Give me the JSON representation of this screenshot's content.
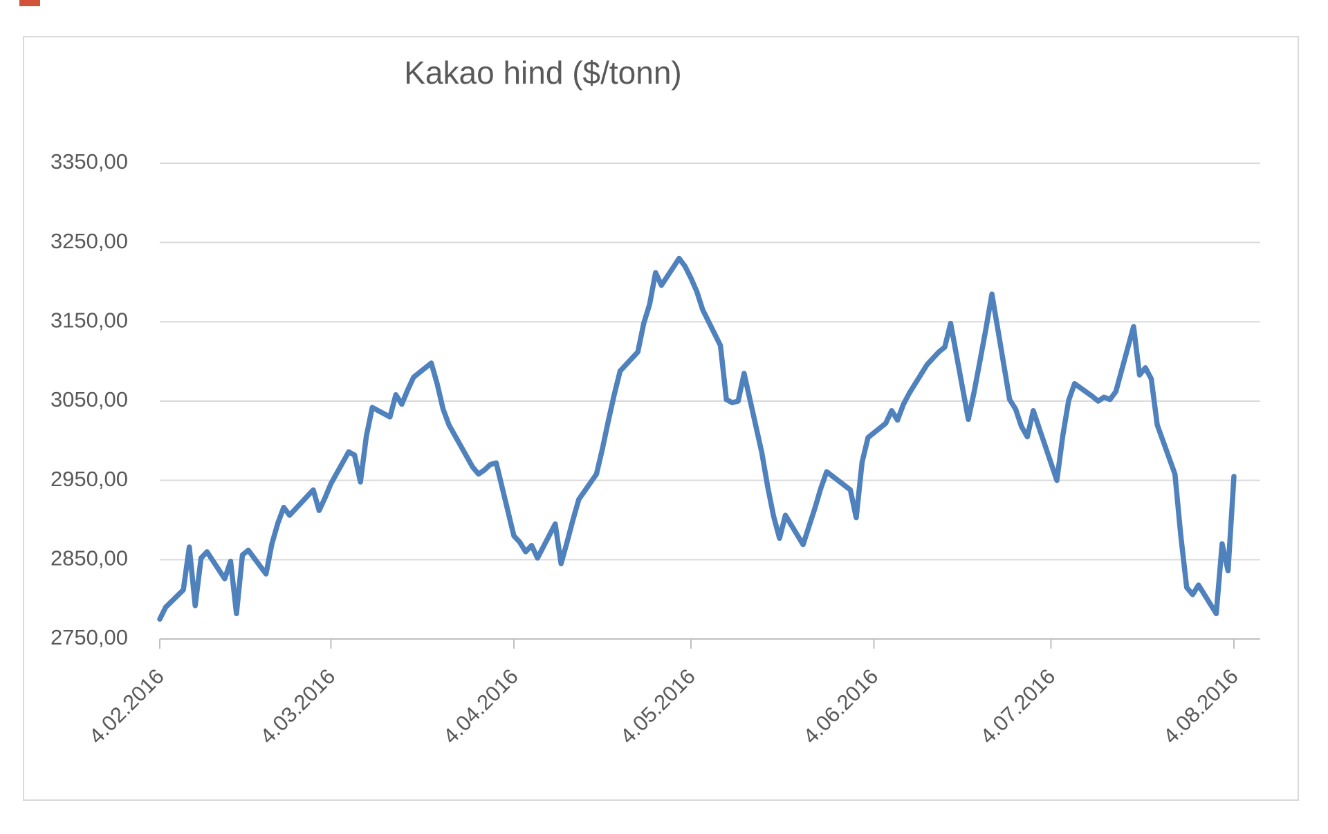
{
  "page": {
    "background_color": "#ffffff"
  },
  "artifact": {
    "color": "#cc4125"
  },
  "chart_data": {
    "type": "line",
    "title": "Kakao hind ($/tonn)",
    "title_color": "#595959",
    "line_color": "#4f81bd",
    "gridline_color": "#d9d9d9",
    "axis_color": "#bfbfbf",
    "label_color": "#595959",
    "frame_border_color": "#d9d9d9",
    "grid": "horizontal-only",
    "legend": "none",
    "ylim": [
      2750,
      3350
    ],
    "ytick_step": 100,
    "yticks": [
      {
        "value": 2750,
        "label": "2750,00"
      },
      {
        "value": 2850,
        "label": "2850,00"
      },
      {
        "value": 2950,
        "label": "2950,00"
      },
      {
        "value": 3050,
        "label": "3050,00"
      },
      {
        "value": 3150,
        "label": "3150,00"
      },
      {
        "value": 3250,
        "label": "3250,00"
      },
      {
        "value": 3350,
        "label": "3350,00"
      }
    ],
    "x_start": "2016-02-04",
    "x_end": "2016-08-04",
    "xticks": [
      {
        "date": "2016-02-04",
        "label": "4.02.2016"
      },
      {
        "date": "2016-03-04",
        "label": "4.03.2016"
      },
      {
        "date": "2016-04-04",
        "label": "4.04.2016"
      },
      {
        "date": "2016-05-04",
        "label": "4.05.2016"
      },
      {
        "date": "2016-06-04",
        "label": "4.06.2016"
      },
      {
        "date": "2016-07-04",
        "label": "4.07.2016"
      },
      {
        "date": "2016-08-04",
        "label": "4.08.2016"
      }
    ],
    "series": [
      {
        "points": [
          [
            "2016-02-04",
            2775
          ],
          [
            "2016-02-05",
            2790
          ],
          [
            "2016-02-08",
            2812
          ],
          [
            "2016-02-09",
            2866
          ],
          [
            "2016-02-10",
            2792
          ],
          [
            "2016-02-11",
            2852
          ],
          [
            "2016-02-12",
            2860
          ],
          [
            "2016-02-15",
            2826
          ],
          [
            "2016-02-16",
            2848
          ],
          [
            "2016-02-17",
            2782
          ],
          [
            "2016-02-18",
            2856
          ],
          [
            "2016-02-19",
            2862
          ],
          [
            "2016-02-22",
            2832
          ],
          [
            "2016-02-23",
            2870
          ],
          [
            "2016-02-24",
            2896
          ],
          [
            "2016-02-25",
            2916
          ],
          [
            "2016-02-26",
            2906
          ],
          [
            "2016-02-29",
            2930
          ],
          [
            "2016-03-01",
            2938
          ],
          [
            "2016-03-02",
            2912
          ],
          [
            "2016-03-03",
            2928
          ],
          [
            "2016-03-04",
            2946
          ],
          [
            "2016-03-07",
            2986
          ],
          [
            "2016-03-08",
            2982
          ],
          [
            "2016-03-09",
            2948
          ],
          [
            "2016-03-10",
            3006
          ],
          [
            "2016-03-11",
            3042
          ],
          [
            "2016-03-14",
            3030
          ],
          [
            "2016-03-15",
            3058
          ],
          [
            "2016-03-16",
            3046
          ],
          [
            "2016-03-17",
            3064
          ],
          [
            "2016-03-18",
            3080
          ],
          [
            "2016-03-21",
            3098
          ],
          [
            "2016-03-22",
            3072
          ],
          [
            "2016-03-23",
            3040
          ],
          [
            "2016-03-24",
            3020
          ],
          [
            "2016-03-28",
            2967
          ],
          [
            "2016-03-29",
            2958
          ],
          [
            "2016-03-30",
            2963
          ],
          [
            "2016-03-31",
            2970
          ],
          [
            "2016-04-01",
            2972
          ],
          [
            "2016-04-04",
            2880
          ],
          [
            "2016-04-05",
            2872
          ],
          [
            "2016-04-06",
            2860
          ],
          [
            "2016-04-07",
            2868
          ],
          [
            "2016-04-08",
            2852
          ],
          [
            "2016-04-11",
            2895
          ],
          [
            "2016-04-12",
            2845
          ],
          [
            "2016-04-13",
            2872
          ],
          [
            "2016-04-14",
            2900
          ],
          [
            "2016-04-15",
            2926
          ],
          [
            "2016-04-18",
            2958
          ],
          [
            "2016-04-19",
            2990
          ],
          [
            "2016-04-20",
            3025
          ],
          [
            "2016-04-21",
            3058
          ],
          [
            "2016-04-22",
            3088
          ],
          [
            "2016-04-25",
            3112
          ],
          [
            "2016-04-26",
            3148
          ],
          [
            "2016-04-27",
            3172
          ],
          [
            "2016-04-28",
            3212
          ],
          [
            "2016-04-29",
            3196
          ],
          [
            "2016-05-02",
            3230
          ],
          [
            "2016-05-03",
            3220
          ],
          [
            "2016-05-04",
            3205
          ],
          [
            "2016-05-05",
            3188
          ],
          [
            "2016-05-06",
            3165
          ],
          [
            "2016-05-09",
            3120
          ],
          [
            "2016-05-10",
            3052
          ],
          [
            "2016-05-11",
            3048
          ],
          [
            "2016-05-12",
            3050
          ],
          [
            "2016-05-13",
            3085
          ],
          [
            "2016-05-16",
            2985
          ],
          [
            "2016-05-17",
            2942
          ],
          [
            "2016-05-18",
            2905
          ],
          [
            "2016-05-19",
            2877
          ],
          [
            "2016-05-20",
            2906
          ],
          [
            "2016-05-23",
            2869
          ],
          [
            "2016-05-24",
            2892
          ],
          [
            "2016-05-25",
            2915
          ],
          [
            "2016-05-26",
            2940
          ],
          [
            "2016-05-27",
            2961
          ],
          [
            "2016-05-31",
            2938
          ],
          [
            "2016-06-01",
            2903
          ],
          [
            "2016-06-02",
            2973
          ],
          [
            "2016-06-03",
            3004
          ],
          [
            "2016-06-06",
            3022
          ],
          [
            "2016-06-07",
            3038
          ],
          [
            "2016-06-08",
            3026
          ],
          [
            "2016-06-09",
            3046
          ],
          [
            "2016-06-10",
            3060
          ],
          [
            "2016-06-13",
            3096
          ],
          [
            "2016-06-14",
            3104
          ],
          [
            "2016-06-15",
            3112
          ],
          [
            "2016-06-16",
            3118
          ],
          [
            "2016-06-17",
            3148
          ],
          [
            "2016-06-20",
            3027
          ],
          [
            "2016-06-21",
            3062
          ],
          [
            "2016-06-22",
            3102
          ],
          [
            "2016-06-23",
            3142
          ],
          [
            "2016-06-24",
            3185
          ],
          [
            "2016-06-27",
            3052
          ],
          [
            "2016-06-28",
            3040
          ],
          [
            "2016-06-29",
            3018
          ],
          [
            "2016-06-30",
            3005
          ],
          [
            "2016-07-01",
            3038
          ],
          [
            "2016-07-05",
            2950
          ],
          [
            "2016-07-06",
            3006
          ],
          [
            "2016-07-07",
            3051
          ],
          [
            "2016-07-08",
            3072
          ],
          [
            "2016-07-11",
            3056
          ],
          [
            "2016-07-12",
            3050
          ],
          [
            "2016-07-13",
            3055
          ],
          [
            "2016-07-14",
            3052
          ],
          [
            "2016-07-15",
            3062
          ],
          [
            "2016-07-18",
            3144
          ],
          [
            "2016-07-19",
            3083
          ],
          [
            "2016-07-20",
            3092
          ],
          [
            "2016-07-21",
            3078
          ],
          [
            "2016-07-22",
            3020
          ],
          [
            "2016-07-25",
            2958
          ],
          [
            "2016-07-26",
            2880
          ],
          [
            "2016-07-27",
            2815
          ],
          [
            "2016-07-28",
            2806
          ],
          [
            "2016-07-29",
            2818
          ],
          [
            "2016-08-01",
            2782
          ],
          [
            "2016-08-02",
            2870
          ],
          [
            "2016-08-03",
            2836
          ],
          [
            "2016-08-04",
            2955
          ]
        ]
      }
    ]
  }
}
